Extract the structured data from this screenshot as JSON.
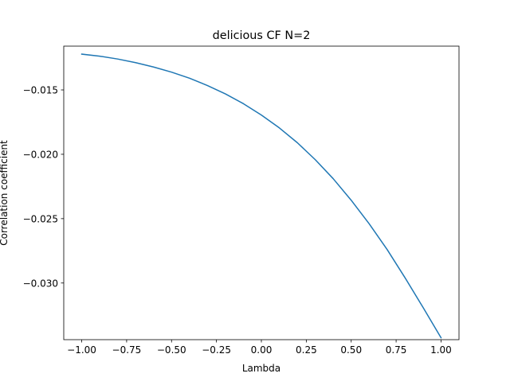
{
  "chart_data": {
    "type": "line",
    "title": "delicious CF N=2",
    "xlabel": "Lambda",
    "ylabel": "Correlation coefficient",
    "xlim": [
      -1.1,
      1.1
    ],
    "ylim": [
      -0.0344,
      -0.0116
    ],
    "grid": false,
    "xticks": [
      -1.0,
      -0.75,
      -0.5,
      -0.25,
      0.0,
      0.25,
      0.5,
      0.75,
      1.0
    ],
    "xtick_labels": [
      "−1.00",
      "−0.75",
      "−0.50",
      "−0.25",
      "0.00",
      "0.25",
      "0.50",
      "0.75",
      "1.00"
    ],
    "yticks": [
      -0.015,
      -0.02,
      -0.025,
      -0.03
    ],
    "ytick_labels": [
      "−0.015",
      "−0.020",
      "−0.025",
      "−0.030"
    ],
    "series": [
      {
        "color": "#1f77b4",
        "x": [
          -1.0,
          -0.9,
          -0.8,
          -0.7,
          -0.6,
          -0.5,
          -0.4,
          -0.3,
          -0.2,
          -0.1,
          0.0,
          0.1,
          0.2,
          0.3,
          0.4,
          0.5,
          0.6,
          0.7,
          0.8,
          0.9,
          1.0
        ],
        "y": [
          -0.01222,
          -0.01238,
          -0.0126,
          -0.01288,
          -0.01322,
          -0.01362,
          -0.01409,
          -0.01466,
          -0.01531,
          -0.01607,
          -0.01695,
          -0.01795,
          -0.0191,
          -0.02042,
          -0.0219,
          -0.02357,
          -0.0254,
          -0.0274,
          -0.0296,
          -0.0319,
          -0.03425
        ]
      }
    ]
  }
}
